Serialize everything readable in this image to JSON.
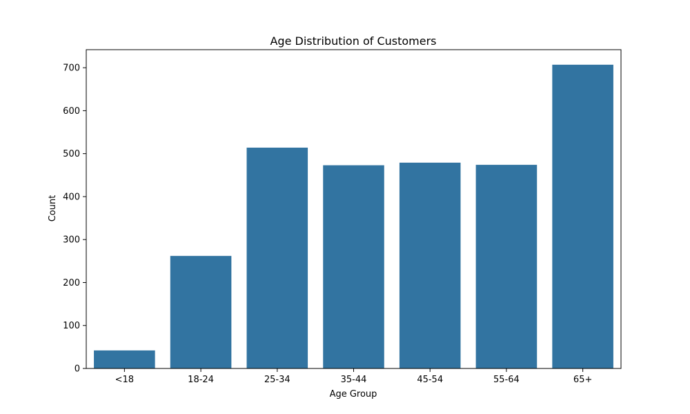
{
  "chart_data": {
    "type": "bar",
    "title": "Age Distribution of Customers",
    "xlabel": "Age Group",
    "ylabel": "Count",
    "categories": [
      "<18",
      "18-24",
      "25-34",
      "35-44",
      "45-54",
      "55-64",
      "65+"
    ],
    "values": [
      42,
      262,
      514,
      473,
      479,
      474,
      707
    ],
    "ylim": [
      0,
      742
    ],
    "yticks": [
      0,
      100,
      200,
      300,
      400,
      500,
      600,
      700
    ],
    "grid": false,
    "bar_color": "#3274a1"
  }
}
